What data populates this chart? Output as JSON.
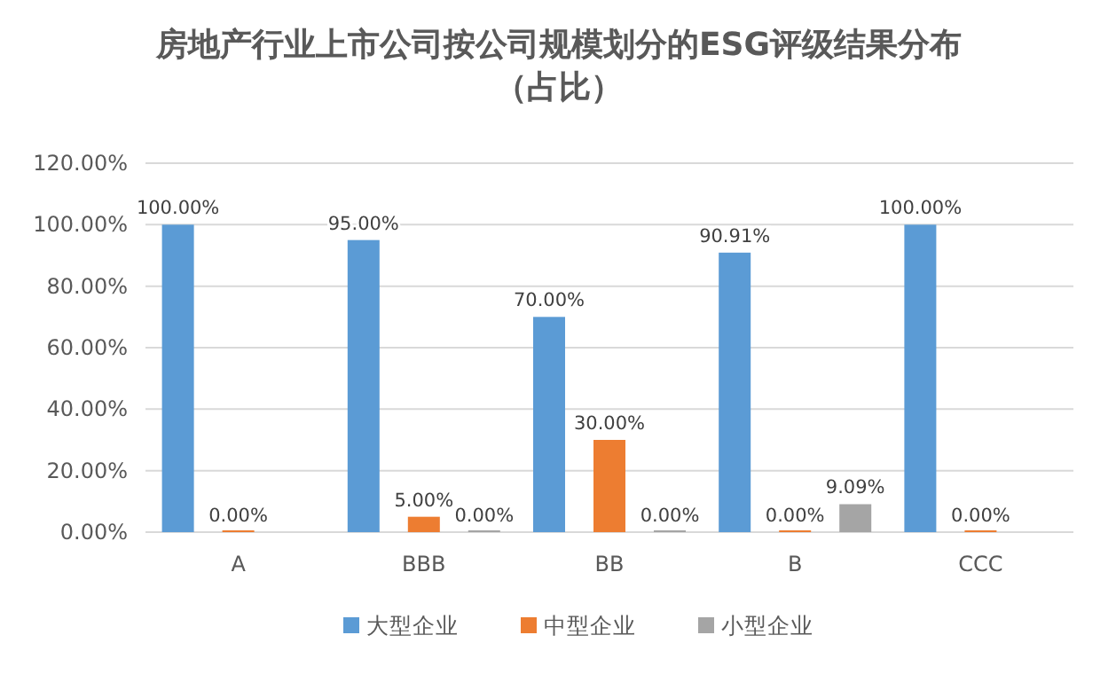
{
  "chart_data": {
    "type": "bar",
    "title": "房地产行业上市公司按公司规模划分的ESG评级结果分布（占比）",
    "categories": [
      "A",
      "BBB",
      "BB",
      "B",
      "CCC"
    ],
    "series": [
      {
        "name": "大型企业",
        "color": "#5b9bd5",
        "values": [
          100,
          95,
          70,
          90.91,
          100
        ],
        "value_labels": [
          "100.00%",
          "95.00%",
          "70.00%",
          "90.91%",
          "100.00%"
        ]
      },
      {
        "name": "中型企业",
        "color": "#ed7d31",
        "values": [
          0,
          5,
          30,
          0,
          0
        ],
        "value_labels": [
          "0.00%",
          "5.00%",
          "30.00%",
          "0.00%",
          "0.00%"
        ]
      },
      {
        "name": "小型企业",
        "color": "#a5a5a5",
        "values": [
          null,
          0,
          0,
          9.09,
          null
        ],
        "value_labels": [
          null,
          "0.00%",
          "0.00%",
          "9.09%",
          null
        ]
      }
    ],
    "ylim": [
      0,
      120
    ],
    "yticks": [
      {
        "value": 0,
        "label": "0.00%"
      },
      {
        "value": 20,
        "label": "20.00%"
      },
      {
        "value": 40,
        "label": "40.00%"
      },
      {
        "value": 60,
        "label": "60.00%"
      },
      {
        "value": 80,
        "label": "80.00%"
      },
      {
        "value": 100,
        "label": "100.00%"
      },
      {
        "value": 120,
        "label": "120.00%"
      }
    ],
    "grid": "y",
    "legend": "bottom"
  }
}
